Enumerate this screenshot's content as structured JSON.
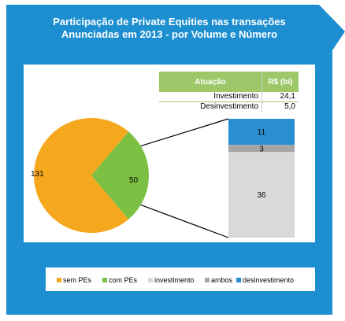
{
  "title_lines": [
    "Participação de Private Equities nas transações",
    "Anunciadas em 2013 - por Volume e Número"
  ],
  "colors": {
    "panel": "#1d8ed0",
    "sem_pes": "#f5a71d",
    "com_pes": "#7bc043",
    "investimento": "#d9d9d9",
    "ambos": "#a6a6a6",
    "desinvestimento": "#2a8fd2",
    "table_header": "#9dc768"
  },
  "table": {
    "headers": [
      "Atuação",
      "R$ (bi)"
    ],
    "rows": [
      {
        "label": "Investimento",
        "value": "24,1"
      },
      {
        "label": "Desinvestimento",
        "value": "5,0"
      }
    ]
  },
  "chart_data": [
    {
      "type": "pie",
      "categories": [
        "sem PEs",
        "com PEs"
      ],
      "values": [
        131,
        50
      ],
      "labels": [
        "131",
        "50"
      ]
    },
    {
      "type": "bar",
      "stacked": true,
      "categories": [
        "com PEs"
      ],
      "series": [
        {
          "name": "investimento",
          "values": [
            36
          ]
        },
        {
          "name": "ambos",
          "values": [
            3
          ]
        },
        {
          "name": "desinvestimento",
          "values": [
            11
          ]
        }
      ]
    }
  ],
  "legend": [
    {
      "key": "sem_pes",
      "label": "sem PEs"
    },
    {
      "key": "com_pes",
      "label": "com PEs"
    },
    {
      "key": "investimento",
      "label": "investimento"
    },
    {
      "key": "ambos",
      "label": "ambos"
    },
    {
      "key": "desinvestimento",
      "label": "desinvestimento"
    }
  ]
}
